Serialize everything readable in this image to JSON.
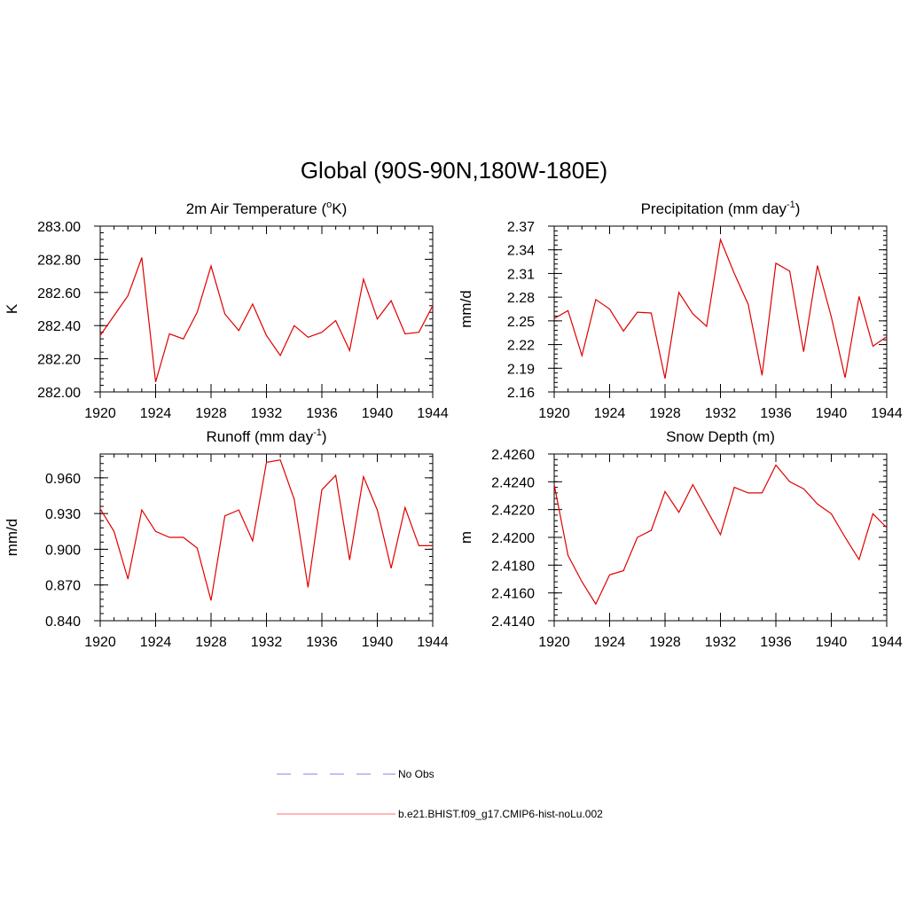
{
  "figure": {
    "title": "Global (90S-90N,180W-180E)",
    "line_color": "#e00000",
    "legend": [
      {
        "label": "No Obs",
        "color": "#9a9af0",
        "style": "dashed"
      },
      {
        "label": "b.e21.BHIST.f09_g17.CMIP6-hist-noLu.002",
        "color": "#ff8a8a",
        "style": "solid"
      }
    ]
  },
  "chart_data": [
    {
      "type": "line",
      "title": "2m Air Temperature (",
      "title_sup": "o",
      "title_end": "K)",
      "ylabel": "K",
      "xlim": [
        1920,
        1944
      ],
      "ylim": [
        282.0,
        283.0
      ],
      "xticks": [
        "1920",
        "1924",
        "1928",
        "1932",
        "1936",
        "1940",
        "1944"
      ],
      "yticks": [
        "282.00",
        "282.20",
        "282.40",
        "282.60",
        "282.80",
        "283.00"
      ],
      "x": [
        1920,
        1921,
        1922,
        1923,
        1924,
        1925,
        1926,
        1927,
        1928,
        1929,
        1930,
        1931,
        1932,
        1933,
        1934,
        1935,
        1936,
        1937,
        1938,
        1939,
        1940,
        1941,
        1942,
        1943,
        1944
      ],
      "series": [
        {
          "values": [
            282.34,
            282.46,
            282.58,
            282.81,
            282.06,
            282.35,
            282.32,
            282.48,
            282.76,
            282.47,
            282.37,
            282.53,
            282.34,
            282.22,
            282.4,
            282.33,
            282.36,
            282.43,
            282.25,
            282.68,
            282.44,
            282.55,
            282.35,
            282.36,
            282.52
          ]
        }
      ]
    },
    {
      "type": "line",
      "title": "Precipitation (mm day",
      "title_sup": "-1",
      "title_end": ")",
      "ylabel": "mm/d",
      "xlim": [
        1920,
        1944
      ],
      "ylim": [
        2.16,
        2.37
      ],
      "xticks": [
        "1920",
        "1924",
        "1928",
        "1932",
        "1936",
        "1940",
        "1944"
      ],
      "yticks": [
        "2.16",
        "2.19",
        "2.22",
        "2.25",
        "2.28",
        "2.31",
        "2.34",
        "2.37"
      ],
      "x": [
        1920,
        1921,
        1922,
        1923,
        1924,
        1925,
        1926,
        1927,
        1928,
        1929,
        1930,
        1931,
        1932,
        1933,
        1934,
        1935,
        1936,
        1937,
        1938,
        1939,
        1940,
        1941,
        1942,
        1943,
        1944
      ],
      "series": [
        {
          "values": [
            2.253,
            2.263,
            2.206,
            2.277,
            2.265,
            2.237,
            2.261,
            2.26,
            2.177,
            2.286,
            2.259,
            2.243,
            2.353,
            2.31,
            2.271,
            2.181,
            2.323,
            2.313,
            2.211,
            2.32,
            2.255,
            2.178,
            2.281,
            2.218,
            2.23
          ]
        }
      ]
    },
    {
      "type": "line",
      "title": "Runoff (mm day",
      "title_sup": "-1",
      "title_end": ")",
      "ylabel": "mm/d",
      "xlim": [
        1920,
        1944
      ],
      "ylim": [
        0.84,
        0.98
      ],
      "xticks": [
        "1920",
        "1924",
        "1928",
        "1932",
        "1936",
        "1940",
        "1944"
      ],
      "yticks": [
        "0.840",
        "0.870",
        "0.900",
        "0.930",
        "0.960"
      ],
      "x": [
        1920,
        1921,
        1922,
        1923,
        1924,
        1925,
        1926,
        1927,
        1928,
        1929,
        1930,
        1931,
        1932,
        1933,
        1934,
        1935,
        1936,
        1937,
        1938,
        1939,
        1940,
        1941,
        1942,
        1943,
        1944
      ],
      "series": [
        {
          "values": [
            0.934,
            0.915,
            0.875,
            0.933,
            0.915,
            0.91,
            0.91,
            0.901,
            0.857,
            0.928,
            0.933,
            0.907,
            0.973,
            0.975,
            0.942,
            0.868,
            0.95,
            0.962,
            0.891,
            0.961,
            0.933,
            0.884,
            0.935,
            0.903,
            0.903
          ]
        }
      ]
    },
    {
      "type": "line",
      "title": "Snow Depth (m)",
      "title_sup": "",
      "title_end": "",
      "ylabel": "m",
      "xlim": [
        1920,
        1944
      ],
      "ylim": [
        2.414,
        2.426
      ],
      "xticks": [
        "1920",
        "1924",
        "1928",
        "1932",
        "1936",
        "1940",
        "1944"
      ],
      "yticks": [
        "2.4140",
        "2.4160",
        "2.4180",
        "2.4200",
        "2.4220",
        "2.4240",
        "2.4260"
      ],
      "x": [
        1920,
        1921,
        1922,
        1923,
        1924,
        1925,
        1926,
        1927,
        1928,
        1929,
        1930,
        1931,
        1932,
        1933,
        1934,
        1935,
        1936,
        1937,
        1938,
        1939,
        1940,
        1941,
        1942,
        1943,
        1944
      ],
      "series": [
        {
          "values": [
            2.4238,
            2.4187,
            2.4168,
            2.4152,
            2.4173,
            2.4176,
            2.42,
            2.4205,
            2.4233,
            2.4218,
            2.4238,
            2.422,
            2.4202,
            2.4236,
            2.4232,
            2.4232,
            2.4252,
            2.424,
            2.4235,
            2.4224,
            2.4217,
            2.42,
            2.4184,
            2.4217,
            2.4207
          ]
        }
      ]
    }
  ]
}
